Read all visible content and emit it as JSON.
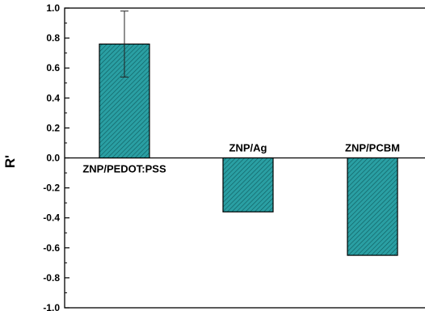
{
  "chart_data": {
    "type": "bar",
    "ylabel": "R'",
    "ylim": [
      -1.0,
      1.0
    ],
    "yticks": [
      1.0,
      0.8,
      0.6,
      0.4,
      0.2,
      0.0,
      -0.2,
      -0.4,
      -0.6,
      -0.8,
      -1.0
    ],
    "ytick_labels": [
      "1.0",
      "0.8",
      "0.6",
      "0.4",
      "0.2",
      "0.0",
      "-0.2",
      "-0.4",
      "-0.6",
      "-0.8",
      "-1.0"
    ],
    "categories": [
      "ZNP/PEDOT:PSS",
      "ZNP/Ag",
      "ZNP/PCBM"
    ],
    "values": [
      0.76,
      -0.36,
      -0.65
    ],
    "error_bars": [
      0.22,
      null,
      null
    ],
    "grid": false,
    "legend": "none",
    "bar_color": "#2a9fa3",
    "bar_edge_color": "#000000"
  }
}
